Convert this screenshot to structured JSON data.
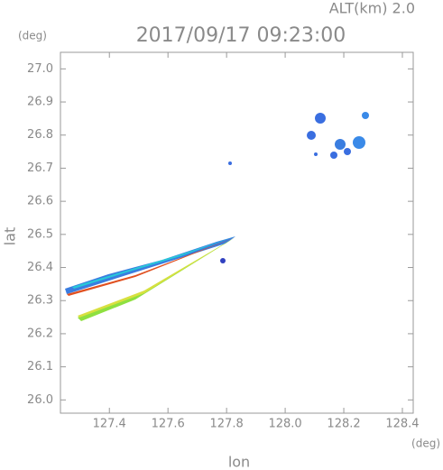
{
  "chart_data": {
    "type": "radar-map",
    "annotation": "ALT(km) 2.0",
    "title": "2017/09/17 09:23:00",
    "y_unit": "(deg)",
    "x_unit": "(deg)",
    "ylabel": "lat",
    "xlabel": "lon",
    "xlim": [
      127.233,
      128.437
    ],
    "ylim": [
      25.96,
      27.05
    ],
    "xticks": [
      127.4,
      127.6,
      127.8,
      {
        "value": 128,
        "label": "128.0"
      },
      128.2,
      128.4
    ],
    "yticks": [
      {
        "value": 26,
        "label": "26.0"
      },
      26.1,
      26.2,
      26.3,
      26.4,
      26.5,
      26.6,
      26.7,
      26.8,
      26.9,
      {
        "value": 27,
        "label": "27.0"
      }
    ]
  }
}
